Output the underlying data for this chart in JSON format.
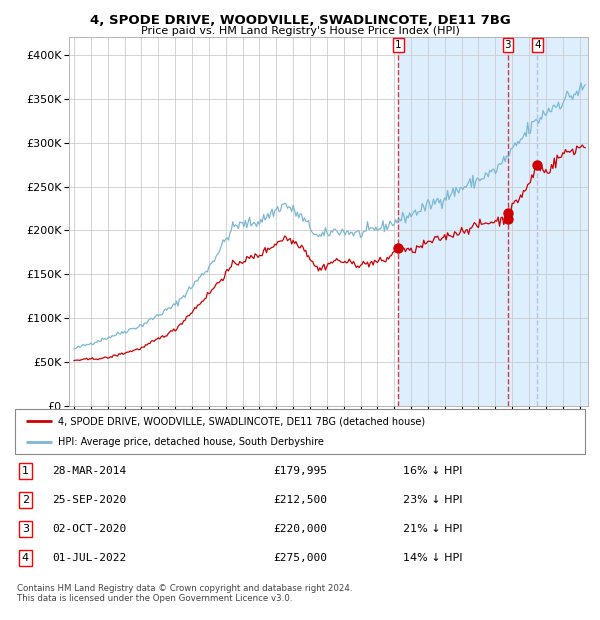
{
  "title": "4, SPODE DRIVE, WOODVILLE, SWADLINCOTE, DE11 7BG",
  "subtitle": "Price paid vs. HM Land Registry's House Price Index (HPI)",
  "legend_property": "4, SPODE DRIVE, WOODVILLE, SWADLINCOTE, DE11 7BG (detached house)",
  "legend_hpi": "HPI: Average price, detached house, South Derbyshire",
  "footer": "Contains HM Land Registry data © Crown copyright and database right 2024.\nThis data is licensed under the Open Government Licence v3.0.",
  "transactions": [
    {
      "label": "1",
      "date": "28-MAR-2014",
      "price": 179995,
      "pct": "16% ↓ HPI",
      "date_num": 2014.24
    },
    {
      "label": "2",
      "date": "25-SEP-2020",
      "price": 212500,
      "pct": "23% ↓ HPI",
      "date_num": 2020.73
    },
    {
      "label": "3",
      "date": "02-OCT-2020",
      "price": 220000,
      "pct": "21% ↓ HPI",
      "date_num": 2020.75
    },
    {
      "label": "4",
      "date": "01-JUL-2022",
      "price": 275000,
      "pct": "14% ↓ HPI",
      "date_num": 2022.5
    }
  ],
  "show_labels_in_chart": [
    "1",
    "3",
    "4"
  ],
  "vlines_red": [
    2014.24,
    2020.75
  ],
  "vlines_blue": [
    2022.5
  ],
  "hpi_color": "#7bb8d4",
  "property_color": "#cc0000",
  "shade_color": "#ddeeff",
  "background_color": "#ffffff",
  "grid_color": "#cccccc",
  "ylim": [
    0,
    420000
  ],
  "xlim_start": 1994.7,
  "xlim_end": 2025.5,
  "yticks": [
    0,
    50000,
    100000,
    150000,
    200000,
    250000,
    300000,
    350000,
    400000
  ],
  "hpi_targets": {
    "1995.0": 65000,
    "1997.0": 78000,
    "1999.0": 92000,
    "2001.0": 115000,
    "2003.0": 158000,
    "2004.5": 205000,
    "2006.0": 210000,
    "2007.5": 230000,
    "2008.5": 215000,
    "2009.5": 192000,
    "2010.5": 200000,
    "2012.0": 196000,
    "2013.5": 205000,
    "2015.0": 218000,
    "2016.0": 228000,
    "2017.5": 243000,
    "2019.0": 258000,
    "2020.0": 268000,
    "2021.0": 290000,
    "2022.0": 315000,
    "2023.0": 335000,
    "2024.0": 348000,
    "2025.3": 362000
  },
  "prop_targets": {
    "1995.0": 52000,
    "1997.0": 55000,
    "1999.0": 66000,
    "2001.0": 87000,
    "2003.0": 128000,
    "2004.5": 162000,
    "2006.0": 172000,
    "2007.5": 192000,
    "2008.5": 183000,
    "2009.5": 155000,
    "2010.5": 166000,
    "2012.0": 161000,
    "2013.5": 166000,
    "2014.24": 179995,
    "2015.0": 176000,
    "2016.0": 186000,
    "2017.5": 196000,
    "2019.0": 206000,
    "2020.0": 211000,
    "2020.73": 212500,
    "2020.76": 220000,
    "2021.0": 226000,
    "2022.0": 252000,
    "2022.5": 275000,
    "2023.0": 266000,
    "2024.0": 287000,
    "2025.3": 297000
  }
}
